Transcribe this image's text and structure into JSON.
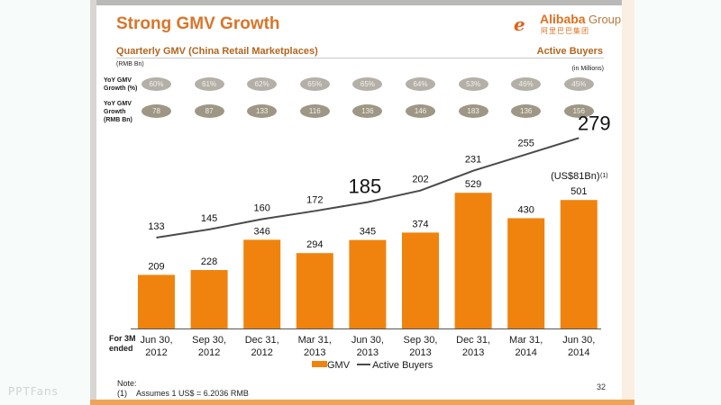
{
  "watermark": "PPTFans",
  "slide": {
    "title": "Strong GMV Growth",
    "subtitle": "Quarterly GMV (China Retail Marketplaces)",
    "right_heading": "Active Buyers",
    "unit_left": "(RMB Bn)",
    "unit_right": "(in Millions)",
    "page_number": "32",
    "logo": {
      "mark": "e",
      "brand": "Alibaba",
      "group": "Group",
      "chinese": "阿里巴巴集团"
    },
    "colors": {
      "accent": "#d9752a",
      "bar": "#f0830e",
      "line": "#4a4a4a",
      "pill_pct": "#b4b0a8",
      "pill_amt": "#9f9786"
    }
  },
  "growth_rows": {
    "yoy_pct_label": [
      "YoY GMV",
      "Growth (%)"
    ],
    "yoy_amt_label": [
      "YoY GMV",
      "Growth",
      "(RMB Bn)"
    ],
    "yoy_pct": [
      "60%",
      "61%",
      "62%",
      "65%",
      "65%",
      "64%",
      "53%",
      "46%",
      "45%"
    ],
    "yoy_amt": [
      "78",
      "87",
      "133",
      "116",
      "136",
      "146",
      "183",
      "136",
      "156"
    ]
  },
  "chart_data": {
    "type": "bar",
    "title": "Quarterly GMV (China Retail Marketplaces)",
    "xlabel": "For 3M ended",
    "ylabel": "RMB Bn",
    "categories": [
      [
        "Jun 30,",
        "2012"
      ],
      [
        "Sep 30,",
        "2012"
      ],
      [
        "Dec 31,",
        "2012"
      ],
      [
        "Mar 31,",
        "2013"
      ],
      [
        "Jun 30,",
        "2013"
      ],
      [
        "Sep 30,",
        "2013"
      ],
      [
        "Dec 31,",
        "2013"
      ],
      [
        "Mar 31,",
        "2014"
      ],
      [
        "Jun 30,",
        "2014"
      ]
    ],
    "series": [
      {
        "name": "GMV",
        "type": "bar",
        "unit": "RMB Bn",
        "values": [
          209,
          228,
          346,
          294,
          345,
          374,
          529,
          430,
          501
        ]
      },
      {
        "name": "Active Buyers",
        "type": "line",
        "unit": "Millions",
        "values": [
          133,
          145,
          160,
          172,
          185,
          202,
          231,
          255,
          279
        ]
      }
    ],
    "highlighted_line_labels": [
      185,
      279
    ],
    "annotations": {
      "last_bar_note": "(US$81Bn)",
      "last_bar_note_ref": "(1)"
    },
    "legend": [
      "GMV",
      "Active Buyers"
    ],
    "legend_position": "bottom-center",
    "grid": false
  },
  "notes": {
    "heading": "Note:",
    "items": [
      {
        "ref": "(1)",
        "text": "Assumes 1 US$ = 6.2036 RMB"
      }
    ]
  }
}
